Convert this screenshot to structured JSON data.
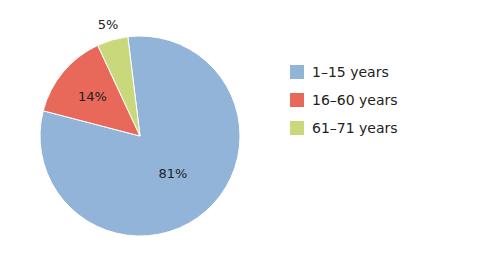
{
  "chart_data": {
    "type": "pie",
    "categories": [
      "1–15 years",
      "16–60 years",
      "61–71 years"
    ],
    "values": [
      81,
      14,
      5
    ],
    "value_labels": [
      "81%",
      "14%",
      "5%"
    ],
    "colors": [
      "#92b4d8",
      "#e8685a",
      "#c8d87a"
    ],
    "data_labels": true,
    "legend": "right"
  }
}
